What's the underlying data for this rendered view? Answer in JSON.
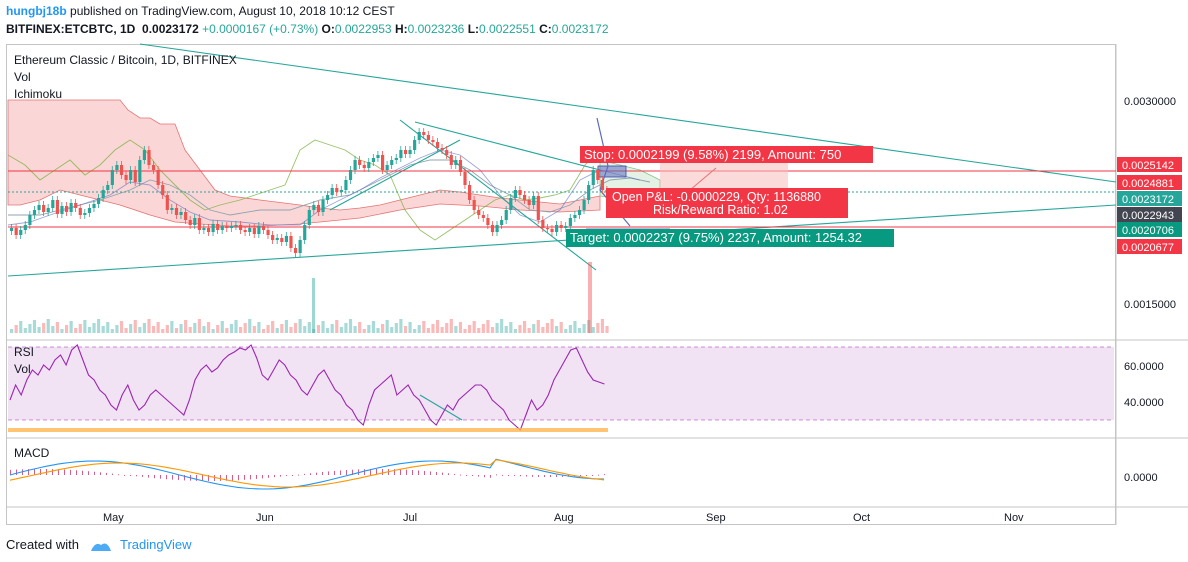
{
  "header": {
    "user": "hungbj18b",
    "published": "published on TradingView.com, August 10, 2018 10:12 CEST",
    "symbol": "BITFINEX:ETCBTC, 1D",
    "last": "0.0023172",
    "change": "+0.0000167 (+0.73%)",
    "o_label": "O:",
    "o": "0.0022953",
    "h_label": "H:",
    "h": "0.0023236",
    "l_label": "L:",
    "l": "0.0022551",
    "c_label": "C:",
    "c": "0.0023172"
  },
  "panes": {
    "main_title": "Ethereum Classic / Bitcoin, 1D, BITFINEX",
    "vol": "Vol",
    "ichimoku": "Ichimoku",
    "rsi": "RSI",
    "rsi_vol": "Vol",
    "macd": "MACD"
  },
  "positions": {
    "stop": "Stop: 0.0002199 (9.58%) 2199, Amount: 750",
    "pnl": "Open P&L: -0.0000229, Qty: 1136880",
    "rr": "Risk/Reward Ratio: 1.02",
    "target": "Target: 0.0002237 (9.75%) 2237, Amount: 1254.32"
  },
  "price_axis": {
    "ticks": [
      "0.0030000",
      "0.0015000"
    ],
    "tags": [
      {
        "text": "0.0025142",
        "color": "#f23645"
      },
      {
        "text": "0.0024881",
        "color": "#f23645"
      },
      {
        "text": "0.0023172",
        "color": "#26a69a"
      },
      {
        "text": "0.0022943",
        "color": "#434651"
      },
      {
        "text": "0.0020706",
        "color": "#089981"
      },
      {
        "text": "0.0020677",
        "color": "#f23645"
      }
    ]
  },
  "rsi_axis": [
    "60.0000",
    "40.0000"
  ],
  "macd_axis": [
    "0.0000"
  ],
  "time_axis": [
    "May",
    "Jun",
    "Jul",
    "Aug",
    "Sep",
    "Oct",
    "Nov"
  ],
  "footer": {
    "created": "Created with",
    "brand": "TradingView"
  },
  "chart_data": {
    "type": "candlestick",
    "title": "Ethereum Classic / Bitcoin, 1D, BITFINEX",
    "symbol": "BITFINEX:ETCBTC",
    "interval": "1D",
    "y_axis_ticks": [
      0.003,
      0.0015
    ],
    "levels": {
      "stop_level": 0.0025142,
      "level_2": 0.0024881,
      "last": 0.0023172,
      "level_4": 0.0022943,
      "target_level": 0.0020706,
      "level_6": 0.0020677
    },
    "last_bar": {
      "open": 0.0022953,
      "high": 0.0023236,
      "low": 0.0022551,
      "close": 0.0023172,
      "change": 1.67e-05,
      "change_pct": 0.73
    },
    "colors": {
      "up": "#26a69a",
      "down": "#ef5350",
      "rsi": "#9c27b0",
      "macd": "#2196f3",
      "signal": "#ff9800"
    }
  }
}
